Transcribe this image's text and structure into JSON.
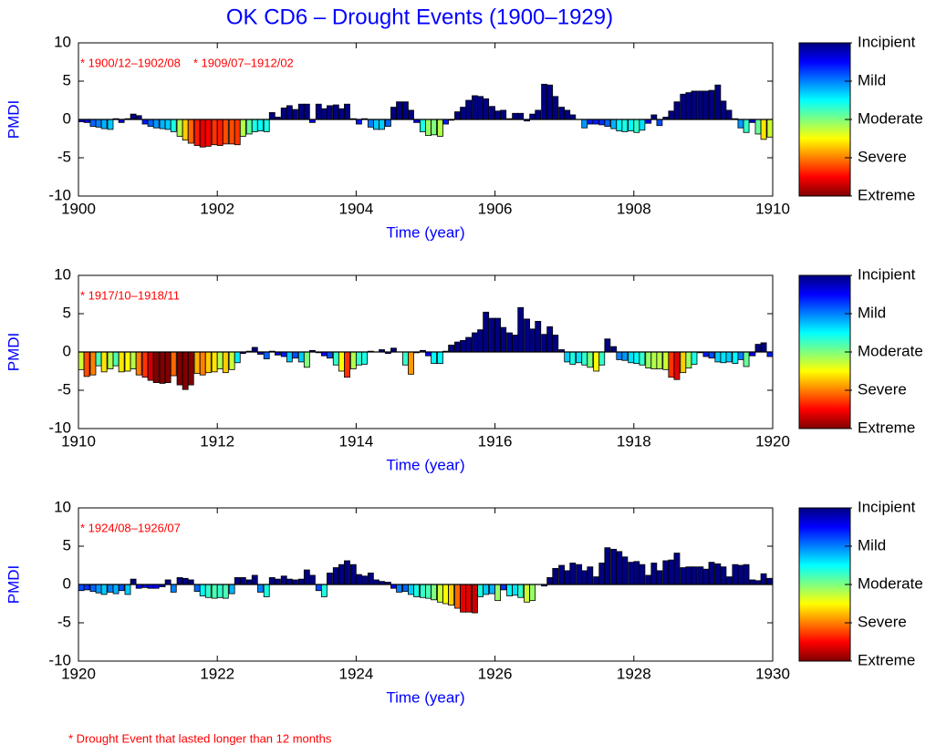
{
  "title": "OK CD6 – Drought Events (1900–1929)",
  "footnote": "* Drought Event that lasted longer than 12 months",
  "chart_data": [
    {
      "type": "bar",
      "xlabel": "Time (year)",
      "ylabel": "PMDI",
      "annotations": [
        "* 1900/12–1902/08",
        "* 1909/07–1912/02"
      ],
      "xlim": [
        1900,
        1910
      ],
      "xticks": [
        1900,
        1902,
        1904,
        1906,
        1908,
        1910
      ],
      "ylim": [
        -10,
        10
      ],
      "yticks": [
        -10,
        -5,
        0,
        5,
        10
      ],
      "clim": [
        -4,
        0
      ],
      "colorbar_labels": [
        "Incipient",
        "Mild",
        "Moderate",
        "Severe",
        "Extreme"
      ],
      "x": [
        1900,
        1900.08,
        1900.17,
        1900.25,
        1900.33,
        1900.42,
        1900.5,
        1900.58,
        1900.67,
        1900.75,
        1900.83,
        1900.92,
        1901,
        1901.08,
        1901.17,
        1901.25,
        1901.33,
        1901.42,
        1901.5,
        1901.58,
        1901.67,
        1901.75,
        1901.83,
        1901.92,
        1902,
        1902.08,
        1902.17,
        1902.25,
        1902.33,
        1902.42,
        1902.5,
        1902.58,
        1902.67,
        1902.75,
        1902.83,
        1902.92,
        1903,
        1903.08,
        1903.17,
        1903.25,
        1903.33,
        1903.42,
        1903.5,
        1903.58,
        1903.67,
        1903.75,
        1903.83,
        1903.92,
        1904,
        1904.08,
        1904.17,
        1904.25,
        1904.33,
        1904.42,
        1904.5,
        1904.58,
        1904.67,
        1904.75,
        1904.83,
        1904.92,
        1905,
        1905.08,
        1905.17,
        1905.25,
        1905.33,
        1905.42,
        1905.5,
        1905.58,
        1905.67,
        1905.75,
        1905.83,
        1905.92,
        1906,
        1906.08,
        1906.17,
        1906.25,
        1906.33,
        1906.42,
        1906.5,
        1906.58,
        1906.67,
        1906.75,
        1906.83,
        1906.92,
        1907,
        1907.08,
        1907.17,
        1907.25,
        1907.33,
        1907.42,
        1907.5,
        1907.58,
        1907.67,
        1907.75,
        1907.83,
        1907.92,
        1908,
        1908.08,
        1908.17,
        1908.25,
        1908.33,
        1908.42,
        1908.5,
        1908.58,
        1908.67,
        1908.75,
        1908.83,
        1908.92,
        1909,
        1909.08,
        1909.17,
        1909.25,
        1909.33,
        1909.42,
        1909.5,
        1909.58,
        1909.67,
        1909.75,
        1909.83,
        1909.92
      ],
      "values": [
        -0.3,
        -0.4,
        -0.9,
        -1.0,
        -1.2,
        -1.3,
        0.1,
        -0.4,
        0.1,
        0.7,
        0.5,
        -0.6,
        -0.9,
        -1.1,
        -1.2,
        -1.3,
        -1.6,
        -2.2,
        -2.7,
        -3.1,
        -3.4,
        -3.6,
        -3.5,
        -3.3,
        -3.4,
        -3.2,
        -3.2,
        -3.3,
        -2.2,
        -1.9,
        -1.6,
        -1.5,
        -1.6,
        0.9,
        0.3,
        1.5,
        1.8,
        1.3,
        2.0,
        2.0,
        -0.4,
        2.0,
        1.4,
        1.8,
        1.9,
        1.4,
        2.0,
        0.1,
        -0.6,
        0.1,
        -1.0,
        -1.3,
        -1.3,
        -0.9,
        1.6,
        2.3,
        2.3,
        1.2,
        -0.4,
        -1.6,
        -2.1,
        -2.0,
        -2.2,
        -0.6,
        -0.1,
        1.0,
        1.6,
        2.5,
        3.1,
        3.0,
        2.7,
        1.7,
        1.1,
        1.2,
        0.1,
        0.8,
        0.8,
        -0.2,
        0.7,
        1.2,
        4.6,
        4.5,
        3.0,
        1.6,
        1.2,
        0.6,
        0.0,
        -1.1,
        -0.6,
        -0.6,
        -0.7,
        -0.9,
        -1.2,
        -1.5,
        -1.6,
        -1.5,
        -1.7,
        -1.4,
        -0.5,
        0.6,
        -0.8,
        0.3,
        1.1,
        2.3,
        3.3,
        3.5,
        3.7,
        3.7,
        3.7,
        3.8,
        4.5,
        2.4,
        1.2,
        0.1,
        -1.1,
        -1.7,
        -0.4,
        -1.9,
        -2.6,
        -2.3
      ]
    },
    {
      "type": "bar",
      "xlabel": "Time (year)",
      "ylabel": "PMDI",
      "annotations": [
        "* 1917/10–1918/11"
      ],
      "xlim": [
        1910,
        1920
      ],
      "xticks": [
        1910,
        1912,
        1914,
        1916,
        1918,
        1920
      ],
      "ylim": [
        -10,
        10
      ],
      "yticks": [
        -10,
        -5,
        0,
        5,
        10
      ],
      "clim": [
        -4,
        0
      ],
      "colorbar_labels": [
        "Incipient",
        "Mild",
        "Moderate",
        "Severe",
        "Extreme"
      ],
      "x": [
        1910,
        1910.08,
        1910.17,
        1910.25,
        1910.33,
        1910.42,
        1910.5,
        1910.58,
        1910.67,
        1910.75,
        1910.83,
        1910.92,
        1911,
        1911.08,
        1911.17,
        1911.25,
        1911.33,
        1911.42,
        1911.5,
        1911.58,
        1911.67,
        1911.75,
        1911.83,
        1911.92,
        1912,
        1912.08,
        1912.17,
        1912.25,
        1912.33,
        1912.42,
        1912.5,
        1912.58,
        1912.67,
        1912.75,
        1912.83,
        1912.92,
        1913,
        1913.08,
        1913.17,
        1913.25,
        1913.33,
        1913.42,
        1913.5,
        1913.58,
        1913.67,
        1913.75,
        1913.83,
        1913.92,
        1914,
        1914.08,
        1914.17,
        1914.25,
        1914.33,
        1914.42,
        1914.5,
        1914.58,
        1914.67,
        1914.75,
        1914.83,
        1914.92,
        1915,
        1915.08,
        1915.17,
        1915.25,
        1915.33,
        1915.42,
        1915.5,
        1915.58,
        1915.67,
        1915.75,
        1915.83,
        1915.92,
        1916,
        1916.08,
        1916.17,
        1916.25,
        1916.33,
        1916.42,
        1916.5,
        1916.58,
        1916.67,
        1916.75,
        1916.83,
        1916.92,
        1917,
        1917.08,
        1917.17,
        1917.25,
        1917.33,
        1917.42,
        1917.5,
        1917.58,
        1917.67,
        1917.75,
        1917.83,
        1917.92,
        1918,
        1918.08,
        1918.17,
        1918.25,
        1918.33,
        1918.42,
        1918.5,
        1918.58,
        1918.67,
        1918.75,
        1918.83,
        1918.92,
        1919,
        1919.08,
        1919.17,
        1919.25,
        1919.33,
        1919.42,
        1919.5,
        1919.58,
        1919.67,
        1919.75,
        1919.83,
        1919.92
      ],
      "values": [
        -2.3,
        -3.2,
        -3.0,
        -1.8,
        -2.6,
        -2.2,
        -1.8,
        -2.6,
        -2.5,
        -2.2,
        -3.0,
        -3.3,
        -3.7,
        -4.0,
        -4.1,
        -4.0,
        -3.1,
        -4.3,
        -4.9,
        -4.3,
        -2.8,
        -3.0,
        -2.7,
        -2.6,
        -2.2,
        -2.7,
        -2.3,
        -1.4,
        -0.2,
        0.1,
        0.6,
        -0.3,
        -0.9,
        0.1,
        -0.4,
        -0.6,
        -1.3,
        -0.8,
        -1.3,
        -2.0,
        0.2,
        -0.1,
        -0.5,
        -0.8,
        -1.7,
        -2.5,
        -3.3,
        -2.2,
        -1.7,
        -1.6,
        0.1,
        0.0,
        0.3,
        -0.2,
        0.5,
        0.0,
        -1.7,
        -2.9,
        -0.1,
        0.2,
        -0.5,
        -1.5,
        -1.5,
        0.1,
        0.9,
        1.3,
        1.5,
        1.9,
        2.5,
        2.9,
        5.2,
        4.4,
        4.4,
        3.2,
        2.5,
        2.2,
        5.8,
        4.3,
        3.0,
        4.0,
        2.3,
        3.3,
        2.2,
        0.3,
        -1.3,
        -1.6,
        -1.4,
        -1.7,
        -2.0,
        -2.5,
        -1.7,
        1.7,
        0.7,
        -1.0,
        -1.1,
        -1.4,
        -1.5,
        -1.7,
        -2.1,
        -2.2,
        -2.2,
        -2.3,
        -3.3,
        -3.6,
        -2.7,
        -2.1,
        -1.6,
        -0.1,
        -0.6,
        -0.8,
        -1.3,
        -1.4,
        -1.3,
        -1.5,
        -1.0,
        -1.9,
        -0.5,
        1.0,
        1.2,
        -0.6
      ]
    },
    {
      "type": "bar",
      "xlabel": "Time (year)",
      "ylabel": "PMDI",
      "annotations": [
        "* 1924/08–1926/07"
      ],
      "xlim": [
        1920,
        1930
      ],
      "xticks": [
        1920,
        1922,
        1924,
        1926,
        1928,
        1930
      ],
      "ylim": [
        -10,
        10
      ],
      "yticks": [
        -10,
        -5,
        0,
        5,
        10
      ],
      "clim": [
        -4,
        0
      ],
      "colorbar_labels": [
        "Incipient",
        "Mild",
        "Moderate",
        "Severe",
        "Extreme"
      ],
      "x": [
        1920,
        1920.08,
        1920.17,
        1920.25,
        1920.33,
        1920.42,
        1920.5,
        1920.58,
        1920.67,
        1920.75,
        1920.83,
        1920.92,
        1921,
        1921.08,
        1921.17,
        1921.25,
        1921.33,
        1921.42,
        1921.5,
        1921.58,
        1921.67,
        1921.75,
        1921.83,
        1921.92,
        1922,
        1922.08,
        1922.17,
        1922.25,
        1922.33,
        1922.42,
        1922.5,
        1922.58,
        1922.67,
        1922.75,
        1922.83,
        1922.92,
        1923,
        1923.08,
        1923.17,
        1923.25,
        1923.33,
        1923.42,
        1923.5,
        1923.58,
        1923.67,
        1923.75,
        1923.83,
        1923.92,
        1924,
        1924.08,
        1924.17,
        1924.25,
        1924.33,
        1924.42,
        1924.5,
        1924.58,
        1924.67,
        1924.75,
        1924.83,
        1924.92,
        1925,
        1925.08,
        1925.17,
        1925.25,
        1925.33,
        1925.42,
        1925.5,
        1925.58,
        1925.67,
        1925.75,
        1925.83,
        1925.92,
        1926,
        1926.08,
        1926.17,
        1926.25,
        1926.33,
        1926.42,
        1926.5,
        1926.58,
        1926.67,
        1926.75,
        1926.83,
        1926.92,
        1927,
        1927.08,
        1927.17,
        1927.25,
        1927.33,
        1927.42,
        1927.5,
        1927.58,
        1927.67,
        1927.75,
        1927.83,
        1927.92,
        1928,
        1928.08,
        1928.17,
        1928.25,
        1928.33,
        1928.42,
        1928.5,
        1928.58,
        1928.67,
        1928.75,
        1928.83,
        1928.92,
        1929,
        1929.08,
        1929.17,
        1929.25,
        1929.33,
        1929.42,
        1929.5,
        1929.58,
        1929.67,
        1929.75,
        1929.83,
        1929.92
      ],
      "values": [
        -0.8,
        -0.7,
        -0.9,
        -1.1,
        -1.3,
        -1.0,
        -1.2,
        -0.8,
        -1.3,
        0.7,
        -0.5,
        -0.4,
        -0.5,
        -0.5,
        -0.3,
        0.6,
        -1.0,
        0.9,
        0.8,
        0.6,
        -0.9,
        -1.5,
        -1.7,
        -1.8,
        -1.7,
        -1.8,
        -1.2,
        0.9,
        0.9,
        0.6,
        1.2,
        -1.0,
        -1.6,
        0.9,
        0.7,
        1.1,
        0.7,
        0.6,
        0.7,
        1.9,
        1.2,
        -0.8,
        -1.6,
        1.5,
        2.2,
        2.6,
        3.1,
        2.6,
        1.3,
        1.1,
        1.5,
        0.6,
        0.4,
        0.3,
        -0.5,
        -1.0,
        -0.9,
        -1.3,
        -1.6,
        -1.7,
        -1.8,
        -2.0,
        -2.3,
        -2.5,
        -2.7,
        -3.1,
        -3.6,
        -3.6,
        -3.7,
        -1.6,
        -1.3,
        -1.2,
        -2.1,
        -0.7,
        -1.5,
        -1.4,
        -1.7,
        -2.3,
        -2.1,
        0.0,
        -0.2,
        0.9,
        2.1,
        2.5,
        1.8,
        2.8,
        2.6,
        1.8,
        2.3,
        1.0,
        2.8,
        4.8,
        4.6,
        4.3,
        3.6,
        2.9,
        3.0,
        2.6,
        1.2,
        2.8,
        1.8,
        3.1,
        3.2,
        4.1,
        2.2,
        2.3,
        2.3,
        2.3,
        2.0,
        2.9,
        2.7,
        2.3,
        1.0,
        2.6,
        2.5,
        2.6,
        0.6,
        0.5,
        1.4,
        0.8
      ]
    }
  ]
}
